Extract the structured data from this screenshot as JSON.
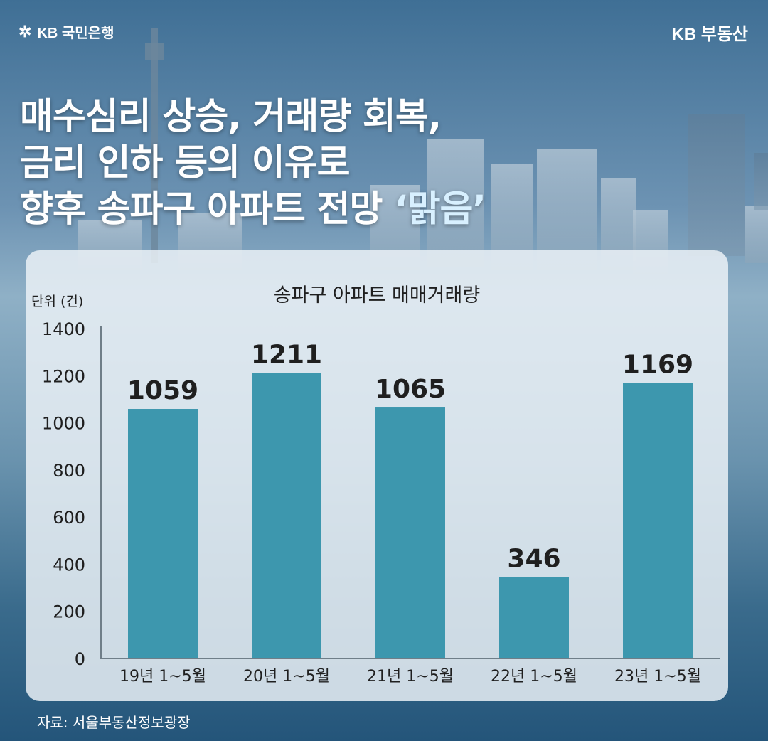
{
  "brand": {
    "bank_name": "KB 국민은행",
    "bank_mark": "✲",
    "service_name": "KB 부동산"
  },
  "headline": {
    "line1": "매수심리 상승, 거래량 회복,",
    "line2": "금리 인하 등의 이유로",
    "line3_prefix": "향후 송파구 아파트 전망 ",
    "line3_highlight": "‘맑음’"
  },
  "source": "자료: 서울부동산정보광장",
  "colors": {
    "bar": "#3d97ae",
    "axis": "#6f7e88",
    "text": "#1f1f1f"
  },
  "chart_data": {
    "type": "bar",
    "title": "송파구 아파트 매매거래량",
    "unit_label": "단위 (건)",
    "categories": [
      "19년 1~5월",
      "20년 1~5월",
      "21년 1~5월",
      "22년 1~5월",
      "23년 1~5월"
    ],
    "values": [
      1059,
      1211,
      1065,
      346,
      1169
    ],
    "ylim": [
      0,
      1400
    ],
    "yticks": [
      0,
      200,
      400,
      600,
      800,
      1000,
      1200,
      1400
    ],
    "data_labels": true,
    "grid": false,
    "legend": "none"
  }
}
